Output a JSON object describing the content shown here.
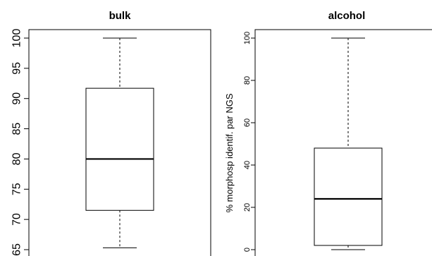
{
  "chart_data": [
    {
      "type": "box",
      "title": "bulk",
      "ylabel": "",
      "ylim": [
        65,
        101
      ],
      "yticks": [
        65,
        70,
        75,
        80,
        85,
        90,
        95,
        100
      ],
      "box": {
        "min": 65.3,
        "q1": 71.5,
        "median": 80,
        "q3": 91.7,
        "max": 100
      }
    },
    {
      "type": "box",
      "title": "alcohol",
      "ylabel": "% morphosp identif. par NGS",
      "ylim": [
        -2,
        103
      ],
      "yticks": [
        0,
        20,
        40,
        60,
        80,
        100
      ],
      "box": {
        "min": 0,
        "q1": 2,
        "median": 24,
        "q3": 48,
        "max": 100
      }
    }
  ]
}
